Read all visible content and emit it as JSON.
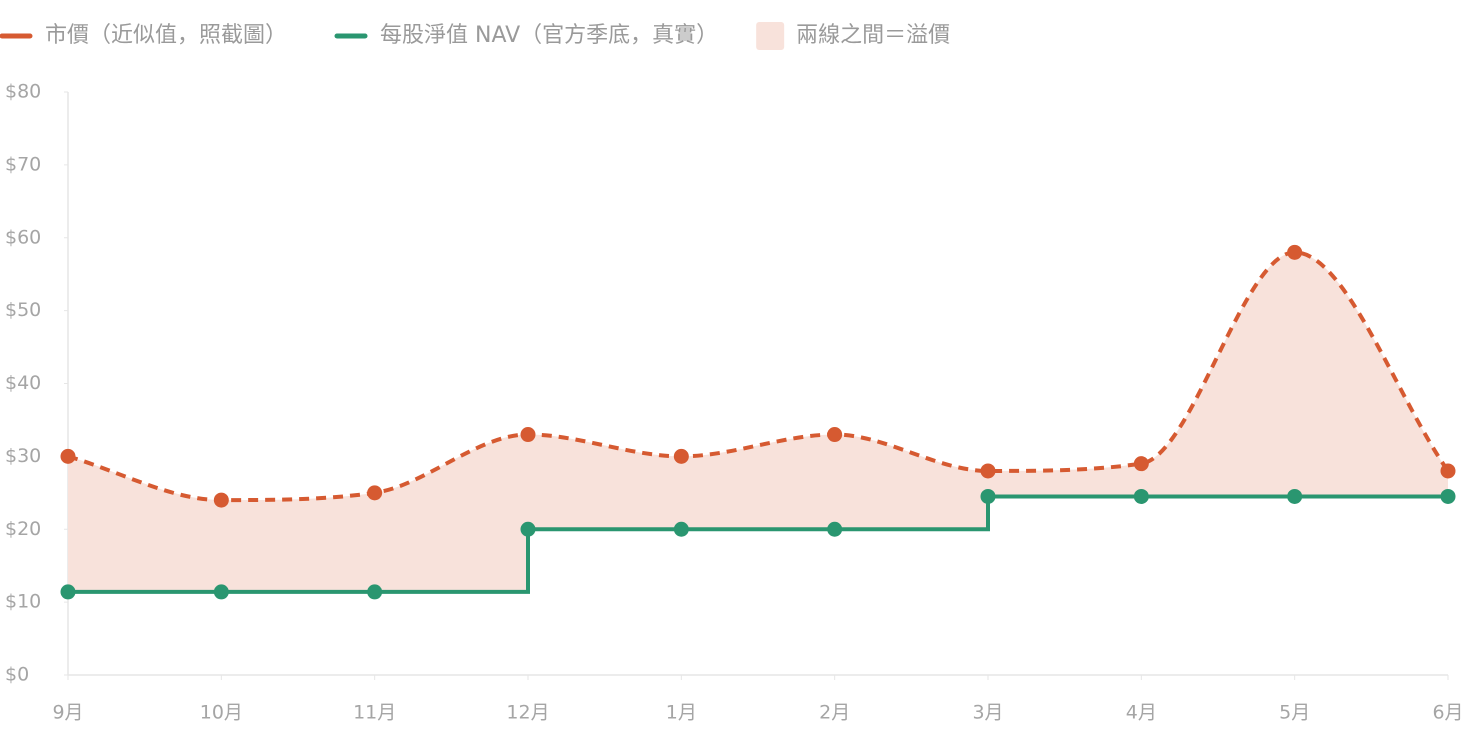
{
  "chart_data": {
    "type": "line",
    "categories": [
      "9月",
      "10月",
      "11月",
      "12月",
      "1月",
      "2月",
      "3月",
      "4月",
      "5月",
      "6月"
    ],
    "series": [
      {
        "name": "市價（近似值，照截圖）",
        "color": "#d65a31",
        "dashed": true,
        "smooth": true,
        "values": [
          30,
          24,
          25,
          33,
          30,
          33,
          28,
          29,
          58,
          28
        ]
      },
      {
        "name": "每股淨值 NAV（官方季底，真實）",
        "color": "#2a9670",
        "stepped": true,
        "values": [
          11.4,
          11.4,
          11.4,
          20,
          20,
          20,
          24.5,
          24.5,
          24.5,
          24.5
        ]
      }
    ],
    "fill_between": {
      "name": "兩線之間＝溢價",
      "color": "#f8e2db"
    },
    "ylim": [
      0,
      80
    ],
    "yticks": [
      {
        "value": 0,
        "label": "$0"
      },
      {
        "value": 10,
        "label": "$10"
      },
      {
        "value": 20,
        "label": "$20"
      },
      {
        "value": 30,
        "label": "$30"
      },
      {
        "value": 40,
        "label": "$40"
      },
      {
        "value": 50,
        "label": "$50"
      },
      {
        "value": 60,
        "label": "$60"
      },
      {
        "value": 70,
        "label": "$70"
      },
      {
        "value": 80,
        "label": "$80"
      }
    ]
  }
}
